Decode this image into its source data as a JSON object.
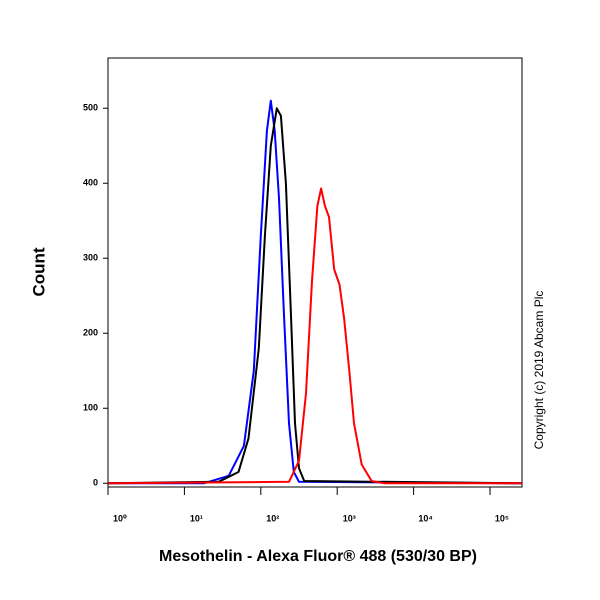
{
  "chart_data": {
    "type": "line",
    "xlabel": "Mesothelin - Alexa Fluor® 488 (530/30 BP)",
    "ylabel": "Count",
    "annotation": "Copyright (c) 2019 Abcam Plc",
    "xscale": "log",
    "xlim": [
      1,
      262144
    ],
    "ylim": [
      -5,
      567
    ],
    "xticks": [
      {
        "value": 1,
        "label": "10⁰"
      },
      {
        "value": 10,
        "label": "10¹"
      },
      {
        "value": 100,
        "label": "10²"
      },
      {
        "value": 1000,
        "label": "10³"
      },
      {
        "value": 10000,
        "label": "10⁴"
      },
      {
        "value": 100000,
        "label": "10⁵"
      }
    ],
    "yticks": [
      0,
      100,
      200,
      300,
      400,
      500
    ],
    "series": [
      {
        "color": "#0000ff",
        "x": [
          1,
          18,
          38,
          60,
          81,
          100,
          120,
          135,
          152,
          173,
          200,
          234,
          270,
          316,
          262144
        ],
        "values": [
          0,
          0,
          10,
          50,
          150,
          330,
          470,
          510,
          470,
          380,
          230,
          80,
          15,
          2,
          0
        ]
      },
      {
        "color": "#000000",
        "x": [
          1,
          28,
          51,
          69,
          94,
          113,
          135,
          162,
          183,
          213,
          247,
          280,
          316,
          370,
          262144
        ],
        "values": [
          0,
          2,
          15,
          60,
          180,
          330,
          450,
          500,
          490,
          400,
          230,
          80,
          20,
          3,
          0
        ]
      },
      {
        "color": "#ff0000",
        "x": [
          1,
          234,
          316,
          390,
          468,
          550,
          616,
          690,
          780,
          912,
          1070,
          1230,
          1440,
          1660,
          2090,
          2820,
          4170,
          262144
        ],
        "values": [
          0,
          2,
          30,
          120,
          270,
          370,
          393,
          370,
          355,
          285,
          265,
          220,
          150,
          80,
          25,
          3,
          0,
          0
        ]
      }
    ]
  }
}
